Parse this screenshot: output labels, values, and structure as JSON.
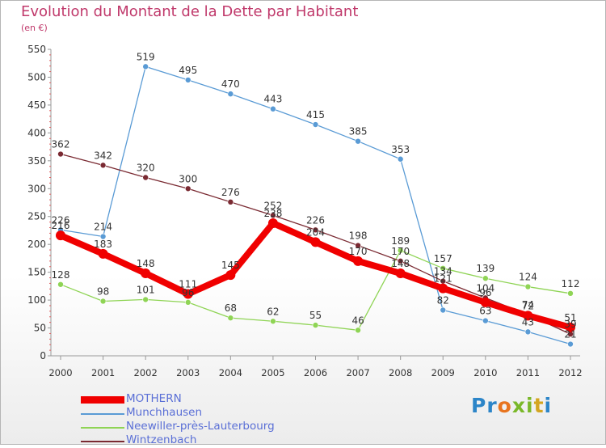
{
  "title": "Evolution du Montant de la Dette par Habitant",
  "subtitle": "(en €)",
  "logo": "Proxiti",
  "chart_data": {
    "type": "line",
    "x": [
      "2000",
      "2001",
      "2002",
      "2003",
      "2004",
      "2005",
      "2006",
      "2007",
      "2008",
      "2009",
      "2010",
      "2011",
      "2012"
    ],
    "ylim": [
      0,
      550
    ],
    "yticks": [
      0,
      50,
      100,
      150,
      200,
      250,
      300,
      350,
      400,
      450,
      500,
      550
    ],
    "grid": false,
    "legend_position": "bottom-left",
    "series": [
      {
        "name": "MOTHERN",
        "color": "#f00000",
        "emphasis": true,
        "values": [
          216,
          183,
          148,
          111,
          145,
          238,
          204,
          170,
          148,
          121,
          96,
          72,
          51
        ]
      },
      {
        "name": "Munchhausen",
        "color": "#5a9bd5",
        "values": [
          226,
          214,
          519,
          495,
          470,
          443,
          415,
          385,
          353,
          82,
          63,
          43,
          21
        ]
      },
      {
        "name": "Neewiller-près-Lauterbourg",
        "color": "#8fd455",
        "values": [
          128,
          98,
          101,
          96,
          68,
          62,
          55,
          46,
          189,
          157,
          139,
          124,
          112
        ]
      },
      {
        "name": "Wintzenbach",
        "color": "#7a2a32",
        "values": [
          362,
          342,
          320,
          300,
          276,
          252,
          226,
          198,
          170,
          134,
          104,
          74,
          39
        ]
      }
    ]
  }
}
